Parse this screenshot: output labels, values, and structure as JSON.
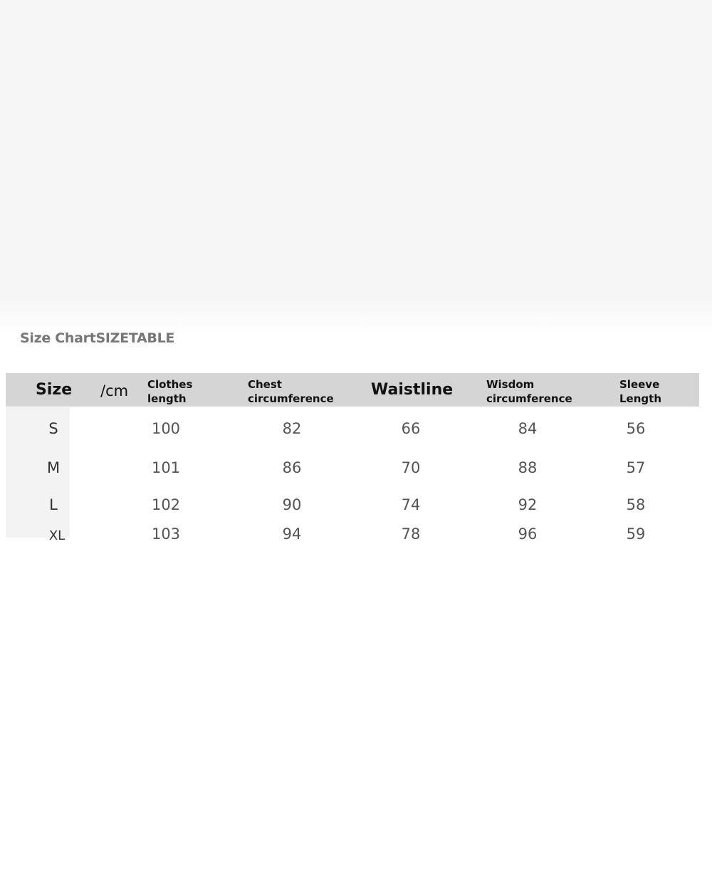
{
  "title": "Size ChartSIZETABLE",
  "header": {
    "size": "Size",
    "unit": "/cm",
    "columns": [
      [
        "Clothes",
        "length"
      ],
      [
        "Chest",
        "circumference"
      ],
      [
        "Waistline"
      ],
      [
        "Wisdom",
        "circumference"
      ],
      [
        "Sleeve",
        "Length"
      ]
    ]
  },
  "rows": [
    {
      "size": "S",
      "values": [
        "100",
        "82",
        "66",
        "84",
        "56"
      ]
    },
    {
      "size": "M",
      "values": [
        "101",
        "86",
        "70",
        "88",
        "57"
      ]
    },
    {
      "size": "L",
      "values": [
        "102",
        "90",
        "74",
        "92",
        "58"
      ]
    },
    {
      "size": "XL",
      "values": [
        "103",
        "94",
        "78",
        "96",
        "59"
      ]
    }
  ]
}
